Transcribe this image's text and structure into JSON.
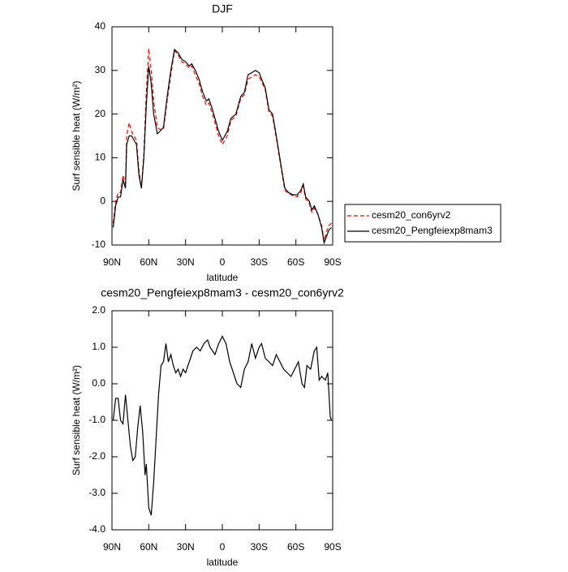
{
  "chart_data": [
    {
      "type": "line",
      "title": "DJF",
      "x_label": "latitude",
      "y_label": "Surf sensible heat (W/m²)",
      "xlim": [
        90,
        -90
      ],
      "xticks": [
        {
          "value": 90,
          "label": "90N"
        },
        {
          "value": 60,
          "label": "60N"
        },
        {
          "value": 30,
          "label": "30N"
        },
        0,
        {
          "value": -30,
          "label": "30S"
        },
        {
          "value": -60,
          "label": "60S"
        },
        {
          "value": -90,
          "label": "90S"
        }
      ],
      "ylim": [
        -10,
        40
      ],
      "yticks": [
        -10,
        0,
        10,
        20,
        30,
        40
      ],
      "legend": "right",
      "x": [
        89,
        87,
        85,
        83,
        81,
        79,
        78,
        76,
        74,
        72,
        70,
        68,
        66,
        64,
        62,
        60,
        58,
        56,
        53,
        51,
        48,
        45,
        42,
        39,
        36,
        33,
        30,
        27,
        25,
        22,
        19,
        16,
        13,
        11,
        8,
        5,
        3,
        0,
        -4,
        -7,
        -11,
        -15,
        -18,
        -21,
        -24,
        -27,
        -30,
        -32,
        -35,
        -38,
        -41,
        -44,
        -48,
        -51,
        -54,
        -58,
        -61,
        -64,
        -66,
        -68,
        -71,
        -73,
        -75,
        -78,
        -81,
        -83,
        -85,
        -87,
        -89
      ],
      "series": [
        {
          "name": "cesm20_con6yrv2",
          "color": "#ff0000",
          "dashed": true,
          "values": [
            -5,
            0,
            2,
            2,
            6,
            4,
            15,
            18,
            16,
            15,
            14,
            7,
            3,
            11,
            25,
            35,
            30,
            23,
            17,
            16.5,
            16.5,
            23,
            29,
            34.5,
            33.5,
            32,
            31.5,
            30.5,
            31,
            29,
            27,
            24,
            22,
            22.5,
            20,
            17,
            15,
            13,
            15,
            18.5,
            19.5,
            23.5,
            24.5,
            28,
            28.5,
            29,
            28.5,
            27.5,
            25.5,
            20.5,
            19.5,
            14.5,
            7.5,
            2.5,
            1.8,
            1.2,
            1,
            2,
            3.5,
            0.5,
            -0.5,
            -2.5,
            -1.5,
            -3,
            -5.5,
            -9,
            -7,
            -5.5,
            -5
          ]
        },
        {
          "name": "cesm20_Pengfeiexp8mam3",
          "color": "#000000",
          "dashed": false,
          "values": [
            -6,
            -1,
            1,
            1,
            5,
            3,
            13,
            15,
            15,
            14,
            13,
            6,
            3,
            10,
            22,
            31,
            27,
            20,
            15.5,
            16,
            17,
            24,
            30,
            34.8,
            34,
            32.5,
            32,
            31,
            31.5,
            30,
            28,
            25,
            23,
            23.5,
            21,
            18,
            16,
            14,
            16,
            19,
            20,
            24,
            25,
            29,
            29.5,
            30,
            29.5,
            28,
            26,
            21,
            20,
            15,
            8,
            3,
            2,
            1.5,
            1.5,
            2.5,
            4,
            1,
            0,
            -2,
            -1,
            -3,
            -6,
            -9.5,
            -8,
            -6.5,
            -6
          ]
        }
      ]
    },
    {
      "type": "line",
      "title": "cesm20_Pengfeiexp8mam3 - cesm20_con6yrv2",
      "x_label": "latitude",
      "y_label": "Surf sensible heat (W/m²)",
      "xlim": [
        90,
        -90
      ],
      "xticks": [
        {
          "value": 90,
          "label": "90N"
        },
        {
          "value": 60,
          "label": "60N"
        },
        {
          "value": 30,
          "label": "30N"
        },
        0,
        {
          "value": -30,
          "label": "30S"
        },
        {
          "value": -60,
          "label": "60S"
        },
        {
          "value": -90,
          "label": "90S"
        }
      ],
      "ylim": [
        -4,
        2
      ],
      "yticks": [
        {
          "value": -4,
          "label": "-4.0"
        },
        {
          "value": -3,
          "label": "-3.0"
        },
        {
          "value": -2,
          "label": "-2.0"
        },
        {
          "value": -1,
          "label": "-1.0"
        },
        {
          "value": 0,
          "label": "0.0"
        },
        {
          "value": 1,
          "label": "1.0"
        },
        {
          "value": 2,
          "label": "2.0"
        }
      ],
      "x": [
        89,
        87,
        85,
        83,
        81,
        79,
        77,
        75,
        73,
        71,
        69,
        67,
        65,
        63,
        62,
        60,
        58,
        56,
        54,
        52,
        50,
        48,
        46,
        44,
        42,
        40,
        38,
        36,
        34,
        32,
        30,
        27,
        24,
        21,
        18,
        15,
        12,
        10,
        6,
        3,
        0,
        -3,
        -6,
        -9,
        -12,
        -15,
        -18,
        -21,
        -24,
        -27,
        -30,
        -32,
        -35,
        -38,
        -41,
        -44,
        -47,
        -50,
        -53,
        -56,
        -59,
        -62,
        -65,
        -67,
        -69,
        -72,
        -75,
        -77,
        -79,
        -81,
        -84,
        -86,
        -88,
        -89
      ],
      "series": [
        {
          "color": "#000000",
          "dashed": false,
          "values": [
            -1.0,
            -0.4,
            -0.4,
            -1.0,
            -1.1,
            -0.3,
            -1.0,
            -1.7,
            -2.1,
            -2.0,
            -1.2,
            -0.6,
            -1.3,
            -2.5,
            -2.2,
            -3.4,
            -3.6,
            -2.7,
            -1.5,
            -0.3,
            0.5,
            0.6,
            1.1,
            0.6,
            0.8,
            0.5,
            0.3,
            0.4,
            0.2,
            0.4,
            0.3,
            0.6,
            0.9,
            1.0,
            0.9,
            1.1,
            1.2,
            1.0,
            0.8,
            1.1,
            1.3,
            1.1,
            0.6,
            0.3,
            0.0,
            -0.1,
            0.4,
            0.6,
            1.1,
            0.7,
            1.0,
            1.1,
            0.7,
            0.6,
            0.5,
            0.8,
            0.6,
            0.4,
            0.3,
            0.2,
            0.4,
            0.6,
            0.0,
            -0.1,
            0.5,
            0.4,
            0.9,
            1.0,
            0.1,
            0.2,
            0.1,
            0.3,
            -0.9,
            -1.0
          ]
        }
      ]
    }
  ]
}
